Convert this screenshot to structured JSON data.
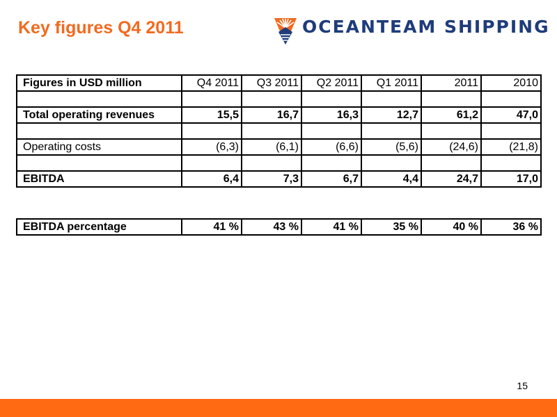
{
  "slide": {
    "title": "Key figures Q4 2011",
    "company": "OCEANTEAM SHIPPING",
    "page_number": "15",
    "accent_color": "#f26a1f",
    "brand_color": "#1f3c7a"
  },
  "table": {
    "header": {
      "label": "Figures in USD million",
      "cols": [
        "Q4 2011",
        "Q3 2011",
        "Q2 2011",
        "Q1 2011",
        "2011",
        "2010"
      ]
    },
    "rows": [
      {
        "label": "",
        "values": [
          "",
          "",
          "",
          "",
          "",
          ""
        ]
      },
      {
        "label": "Total operating revenues",
        "values": [
          "15,5",
          "16,7",
          "16,3",
          "12,7",
          "61,2",
          "47,0"
        ]
      },
      {
        "label": "",
        "values": [
          "",
          "",
          "",
          "",
          "",
          ""
        ]
      },
      {
        "label": "Operating costs",
        "values": [
          "(6,3)",
          "(6,1)",
          "(6,6)",
          "(5,6)",
          "(24,6)",
          "(21,8)"
        ]
      },
      {
        "label": "",
        "values": [
          "",
          "",
          "",
          "",
          "",
          ""
        ]
      },
      {
        "label": "EBITDA",
        "values": [
          "6,4",
          "7,3",
          "6,7",
          "4,4",
          "24,7",
          "17,0"
        ]
      }
    ],
    "percentage": {
      "label": "EBITDA percentage",
      "values": [
        "41 %",
        "43 %",
        "41 %",
        "35 %",
        "40 %",
        "36 %"
      ]
    }
  }
}
